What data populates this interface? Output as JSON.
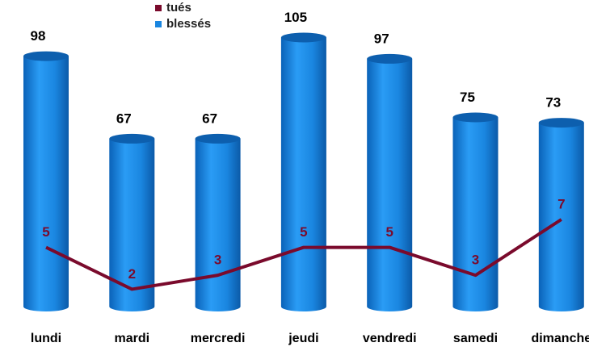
{
  "chart_data": {
    "type": "bar",
    "categories": [
      "lundi",
      "mardi",
      "mercredi",
      "jeudi",
      "vendredi",
      "samedi",
      "dimanche"
    ],
    "series": [
      {
        "name": "tués",
        "type": "line",
        "axis": "y2",
        "color": "#7a0a2c",
        "values": [
          5,
          2,
          3,
          5,
          5,
          3,
          7
        ]
      },
      {
        "name": "blessés",
        "type": "bar",
        "color": "#1a86e0",
        "values": [
          98,
          67,
          67,
          105,
          97,
          75,
          73
        ]
      }
    ],
    "ylim": [
      0,
      110
    ],
    "y2lim": [
      0,
      21
    ],
    "legend": "top"
  }
}
